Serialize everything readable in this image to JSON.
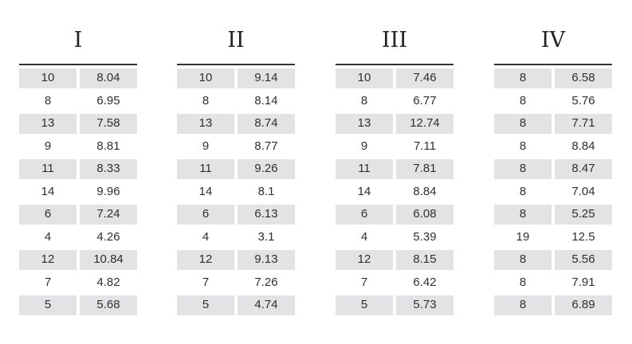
{
  "groups": [
    {
      "title": "I",
      "rows": [
        {
          "x": "10",
          "y": "8.04"
        },
        {
          "x": "8",
          "y": "6.95"
        },
        {
          "x": "13",
          "y": "7.58"
        },
        {
          "x": "9",
          "y": "8.81"
        },
        {
          "x": "11",
          "y": "8.33"
        },
        {
          "x": "14",
          "y": "9.96"
        },
        {
          "x": "6",
          "y": "7.24"
        },
        {
          "x": "4",
          "y": "4.26"
        },
        {
          "x": "12",
          "y": "10.84"
        },
        {
          "x": "7",
          "y": "4.82"
        },
        {
          "x": "5",
          "y": "5.68"
        }
      ]
    },
    {
      "title": "II",
      "rows": [
        {
          "x": "10",
          "y": "9.14"
        },
        {
          "x": "8",
          "y": "8.14"
        },
        {
          "x": "13",
          "y": "8.74"
        },
        {
          "x": "9",
          "y": "8.77"
        },
        {
          "x": "11",
          "y": "9.26"
        },
        {
          "x": "14",
          "y": "8.1"
        },
        {
          "x": "6",
          "y": "6.13"
        },
        {
          "x": "4",
          "y": "3.1"
        },
        {
          "x": "12",
          "y": "9.13"
        },
        {
          "x": "7",
          "y": "7.26"
        },
        {
          "x": "5",
          "y": "4.74"
        }
      ]
    },
    {
      "title": "III",
      "rows": [
        {
          "x": "10",
          "y": "7.46"
        },
        {
          "x": "8",
          "y": "6.77"
        },
        {
          "x": "13",
          "y": "12.74"
        },
        {
          "x": "9",
          "y": "7.11"
        },
        {
          "x": "11",
          "y": "7.81"
        },
        {
          "x": "14",
          "y": "8.84"
        },
        {
          "x": "6",
          "y": "6.08"
        },
        {
          "x": "4",
          "y": "5.39"
        },
        {
          "x": "12",
          "y": "8.15"
        },
        {
          "x": "7",
          "y": "6.42"
        },
        {
          "x": "5",
          "y": "5.73"
        }
      ]
    },
    {
      "title": "IV",
      "rows": [
        {
          "x": "8",
          "y": "6.58"
        },
        {
          "x": "8",
          "y": "5.76"
        },
        {
          "x": "8",
          "y": "7.71"
        },
        {
          "x": "8",
          "y": "8.84"
        },
        {
          "x": "8",
          "y": "8.47"
        },
        {
          "x": "8",
          "y": "7.04"
        },
        {
          "x": "8",
          "y": "5.25"
        },
        {
          "x": "19",
          "y": "12.5"
        },
        {
          "x": "8",
          "y": "5.56"
        },
        {
          "x": "8",
          "y": "7.91"
        },
        {
          "x": "8",
          "y": "6.89"
        }
      ]
    }
  ]
}
